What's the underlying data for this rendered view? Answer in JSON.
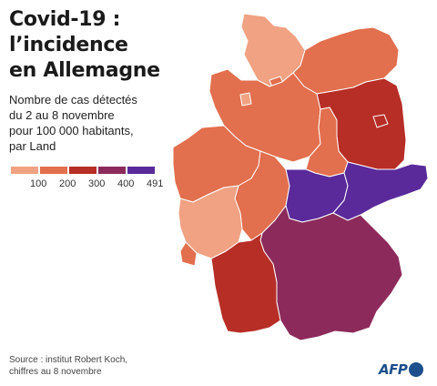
{
  "title": {
    "line1": "Covid-19 :",
    "line2": "l’incidence",
    "line3": "en Allemagne"
  },
  "subtitle": {
    "line1": "Nombre de cas détectés",
    "line2": "du 2 au 8 novembre",
    "line3": "pour 100 000 habitants,",
    "line4": "par Land"
  },
  "legend": {
    "colors": [
      "#f0a283",
      "#e26f4d",
      "#b72e26",
      "#8c2b5b",
      "#5a2a9a"
    ],
    "labels": [
      "100",
      "200",
      "300",
      "400",
      "491"
    ]
  },
  "map_colors": {
    "band_1": "#f0a283",
    "band_2": "#e26f4d",
    "band_3": "#b72e26",
    "band_4": "#8c2b5b",
    "band_5": "#5a2a9a"
  },
  "source": {
    "line1": "Source : institut Robert Koch,",
    "line2": "chiffres au 8 novembre"
  },
  "logo": {
    "text": "AFP"
  }
}
